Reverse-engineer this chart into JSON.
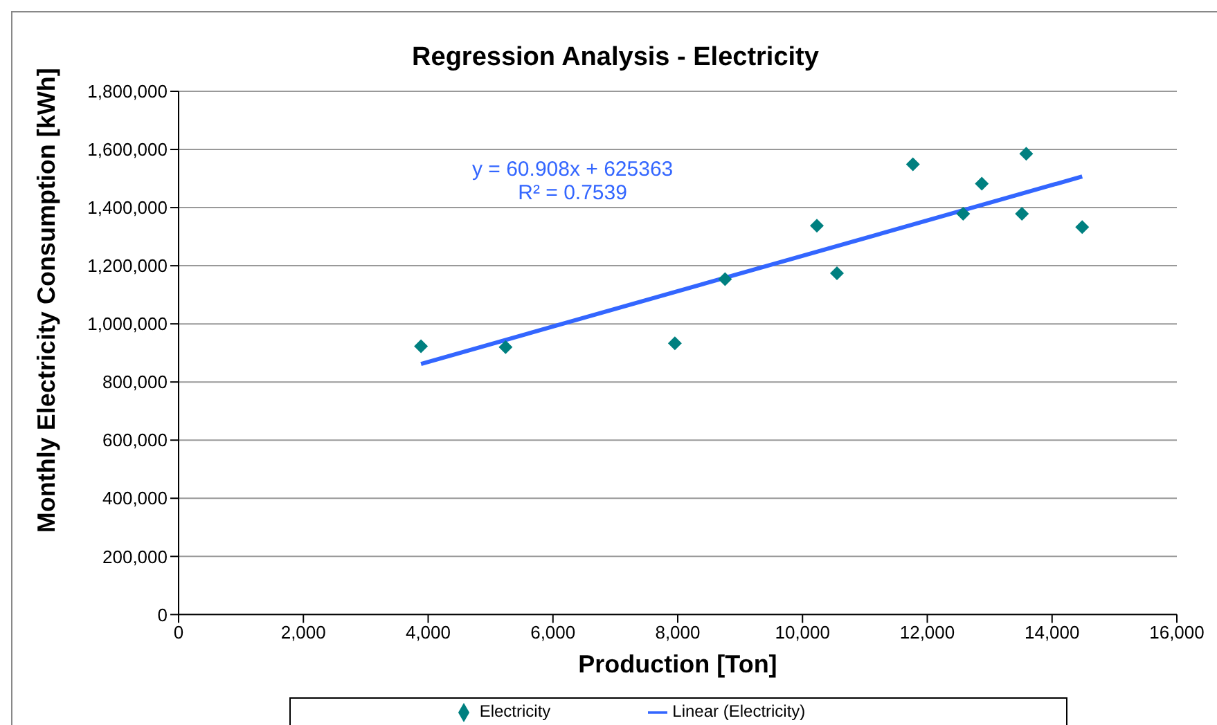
{
  "chart_data": {
    "type": "scatter",
    "title": "Regression Analysis - Electricity",
    "xlabel": "Production [Ton]",
    "ylabel": "Monthly Electricity Consumption [kWh]",
    "annotations": [
      "y = 60.908x + 625363",
      "R² = 0.7539"
    ],
    "series": [
      {
        "name": "Electricity",
        "color": "#008080",
        "marker": "diamond",
        "x": [
          3885,
          5241,
          7954,
          8759,
          10230,
          10552,
          11770,
          12575,
          12874,
          13586,
          13517,
          14483
        ],
        "values": [
          923000,
          920000,
          933000,
          1154000,
          1338000,
          1174000,
          1549000,
          1379000,
          1482000,
          1585000,
          1379000,
          1333000
        ]
      },
      {
        "name": "Linear (Electricity)",
        "type": "line",
        "color": "#3366ff",
        "marker": "none",
        "x": [
          3885,
          14483
        ],
        "values": [
          862000,
          1507000
        ]
      }
    ],
    "xlim": [
      0,
      16000
    ],
    "xticks": [
      0,
      {
        "value": 2000,
        "label": "2,000"
      },
      {
        "value": 4000,
        "label": "4,000"
      },
      {
        "value": 6000,
        "label": "6,000"
      },
      {
        "value": 8000,
        "label": "8,000"
      },
      {
        "value": 10000,
        "label": "10,000"
      },
      {
        "value": 12000,
        "label": "12,000"
      },
      {
        "value": 14000,
        "label": "14,000"
      },
      {
        "value": 16000,
        "label": "16,000"
      }
    ],
    "ylim": [
      0,
      1800000
    ],
    "yticks": [
      0,
      {
        "value": 200000,
        "label": "200,000"
      },
      {
        "value": 400000,
        "label": "400,000"
      },
      {
        "value": 600000,
        "label": "600,000"
      },
      {
        "value": 800000,
        "label": "800,000"
      },
      {
        "value": 1000000,
        "label": "1,000,000"
      },
      {
        "value": 1200000,
        "label": "1,200,000"
      },
      {
        "value": 1400000,
        "label": "1,400,000"
      },
      {
        "value": 1600000,
        "label": "1,600,000"
      },
      {
        "value": 1800000,
        "label": "1,800,000"
      }
    ],
    "grid": "y",
    "legend": "bottom"
  }
}
